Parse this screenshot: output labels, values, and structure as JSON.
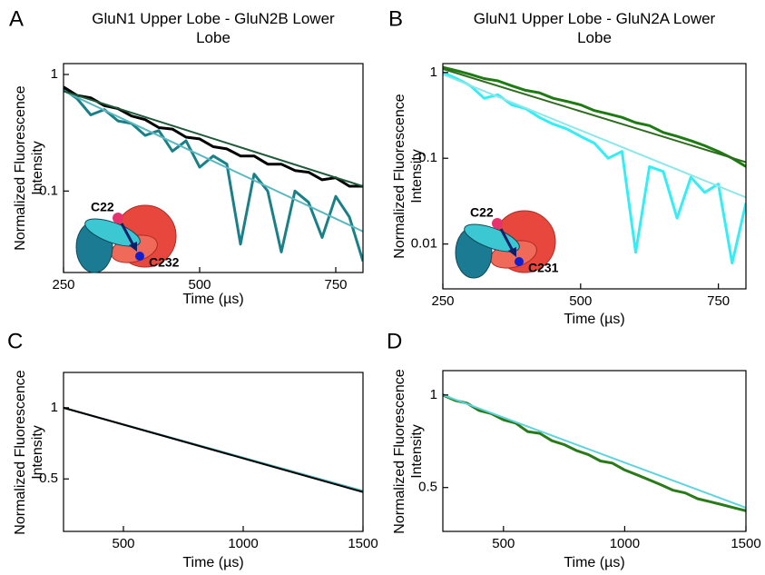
{
  "chart_data": [
    {
      "type": "line",
      "panel": "A",
      "title": "GluN1 Upper Lobe - GluN2B Lower Lobe",
      "xlabel": "Time (µs)",
      "ylabel": "Normalized Fluorescence Intensity",
      "yscale": "log",
      "xlim": [
        250,
        800
      ],
      "ylim": [
        0.02,
        1.24
      ],
      "xticks": [
        250,
        500,
        750
      ],
      "yticks": [
        0.1,
        1
      ],
      "annotations": [
        "C22",
        "C232"
      ],
      "series": [
        {
          "color": "#1a8088",
          "x": [
            250,
            275,
            300,
            325,
            350,
            375,
            400,
            425,
            450,
            475,
            500,
            525,
            550,
            575,
            600,
            625,
            650,
            675,
            700,
            725,
            750,
            775,
            800
          ],
          "values": [
            0.75,
            0.62,
            0.45,
            0.5,
            0.4,
            0.38,
            0.3,
            0.33,
            0.22,
            0.27,
            0.16,
            0.2,
            0.17,
            0.035,
            0.14,
            0.1,
            0.03,
            0.1,
            0.08,
            0.04,
            0.09,
            0.06,
            0.025
          ]
        },
        {
          "color": "#000000",
          "x": [
            250,
            275,
            300,
            325,
            350,
            375,
            400,
            425,
            450,
            475,
            500,
            525,
            550,
            575,
            600,
            625,
            650,
            675,
            700,
            725,
            750,
            775,
            800
          ],
          "values": [
            0.78,
            0.66,
            0.63,
            0.54,
            0.51,
            0.44,
            0.41,
            0.35,
            0.34,
            0.29,
            0.28,
            0.24,
            0.23,
            0.2,
            0.2,
            0.17,
            0.17,
            0.15,
            0.145,
            0.125,
            0.13,
            0.11,
            0.11
          ]
        },
        {
          "color": "#5ab8c0",
          "x": [
            250,
            800
          ],
          "values": [
            0.72,
            0.045
          ]
        },
        {
          "color": "#1e5a3a",
          "x": [
            250,
            800
          ],
          "values": [
            0.72,
            0.11
          ]
        }
      ]
    },
    {
      "type": "line",
      "panel": "B",
      "title": "GluN1 Upper Lobe - GluN2A Lower Lobe",
      "xlabel": "Time (µs)",
      "ylabel": "Normalized Fluorescence Intensity",
      "yscale": "log",
      "xlim": [
        250,
        800
      ],
      "ylim": [
        0.003,
        1.27
      ],
      "xticks": [
        250,
        500,
        750
      ],
      "yticks": [
        0.01,
        0.1,
        1
      ],
      "annotations": [
        "C22",
        "C231"
      ],
      "series": [
        {
          "color": "#33eef5",
          "x": [
            250,
            275,
            300,
            325,
            350,
            375,
            400,
            425,
            450,
            475,
            500,
            525,
            550,
            575,
            600,
            625,
            650,
            675,
            700,
            725,
            750,
            775,
            800
          ],
          "values": [
            1.0,
            0.85,
            0.7,
            0.5,
            0.55,
            0.42,
            0.38,
            0.3,
            0.25,
            0.22,
            0.18,
            0.15,
            0.1,
            0.12,
            0.008,
            0.08,
            0.07,
            0.02,
            0.06,
            0.04,
            0.05,
            0.006,
            0.03
          ]
        },
        {
          "color": "#1e7a12",
          "x": [
            250,
            275,
            300,
            325,
            350,
            375,
            400,
            425,
            450,
            475,
            500,
            525,
            550,
            575,
            600,
            625,
            650,
            675,
            700,
            725,
            750,
            775,
            800
          ],
          "values": [
            1.15,
            1.05,
            0.95,
            0.85,
            0.8,
            0.7,
            0.62,
            0.58,
            0.5,
            0.46,
            0.42,
            0.36,
            0.33,
            0.3,
            0.26,
            0.24,
            0.2,
            0.18,
            0.16,
            0.14,
            0.12,
            0.1,
            0.08
          ]
        },
        {
          "color": "#8ee8ea",
          "x": [
            250,
            800
          ],
          "values": [
            0.95,
            0.035
          ]
        },
        {
          "color": "#2f6b1e",
          "x": [
            250,
            800
          ],
          "values": [
            1.1,
            0.09
          ]
        }
      ]
    },
    {
      "type": "line",
      "panel": "C",
      "xlabel": "Time (µs)",
      "ylabel": "Normalized Fluorescence Intensity",
      "yscale": "log",
      "xlim": [
        250,
        1500
      ],
      "ylim": [
        0.3,
        1.41
      ],
      "xticks": [
        500,
        1000,
        1500
      ],
      "yticks": [
        0.5,
        1
      ],
      "series": [
        {
          "color": "#5ab8c0",
          "x": [
            250,
            1500
          ],
          "values": [
            1.0,
            0.445
          ]
        },
        {
          "color": "#000000",
          "x": [
            250,
            1500
          ],
          "values": [
            1.0,
            0.44
          ]
        }
      ]
    },
    {
      "type": "line",
      "panel": "D",
      "xlabel": "Time (µs)",
      "ylabel": "Normalized Fluorescence Intensity",
      "yscale": "log",
      "xlim": [
        250,
        1500
      ],
      "ylim": [
        0.36,
        1.2
      ],
      "xticks": [
        500,
        1000,
        1500
      ],
      "yticks": [
        0.5,
        1
      ],
      "series": [
        {
          "color": "#2a7a1a",
          "x": [
            250,
            300,
            350,
            400,
            450,
            500,
            550,
            600,
            650,
            700,
            750,
            800,
            850,
            900,
            950,
            1000,
            1050,
            1100,
            1150,
            1200,
            1250,
            1300,
            1350,
            1400,
            1450,
            1500
          ],
          "values": [
            1.0,
            0.96,
            0.94,
            0.89,
            0.87,
            0.83,
            0.81,
            0.76,
            0.75,
            0.71,
            0.69,
            0.66,
            0.64,
            0.61,
            0.6,
            0.57,
            0.55,
            0.53,
            0.51,
            0.49,
            0.48,
            0.46,
            0.45,
            0.44,
            0.43,
            0.42
          ]
        },
        {
          "color": "#5fd4dc",
          "x": [
            250,
            1500
          ],
          "values": [
            1.0,
            0.43
          ]
        }
      ]
    }
  ]
}
